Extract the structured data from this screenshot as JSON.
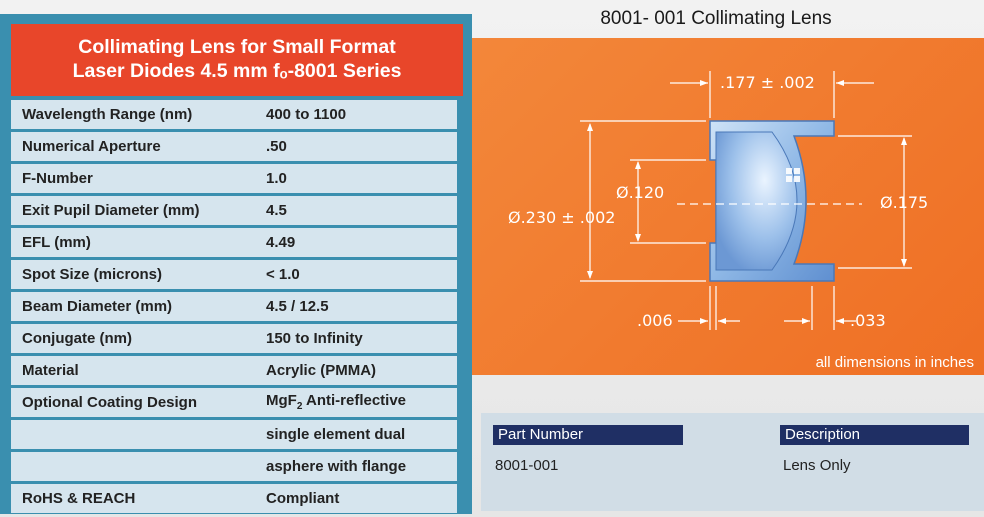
{
  "spec": {
    "title_line1": "Collimating Lens for Small Format",
    "title_line2": "Laser Diodes 4.5 mm fₒ-8001 Series",
    "rows": [
      {
        "label": "Wavelength Range (nm)",
        "value": "400 to 1100"
      },
      {
        "label": "Numerical Aperture",
        "value": ".50"
      },
      {
        "label": "F-Number",
        "value": "1.0"
      },
      {
        "label": "Exit Pupil Diameter (mm)",
        "value": "4.5"
      },
      {
        "label": "EFL (mm)",
        "value": "4.49"
      },
      {
        "label": "Spot Size (microns)",
        "value": "< 1.0"
      },
      {
        "label": "Beam Diameter (mm)",
        "value": "4.5 / 12.5"
      },
      {
        "label": "Conjugate (nm)",
        "value": "150 to Infinity"
      },
      {
        "label": "Material",
        "value": "Acrylic (PMMA)"
      },
      {
        "label": "Optional Coating Design",
        "value_pre": "MgF",
        "value_sub": "2",
        "value_post": " Anti-reflective"
      },
      {
        "label": "",
        "value": "single element dual"
      },
      {
        "label": "",
        "value": "asphere with flange"
      },
      {
        "label": "RoHS & REACH",
        "value": "Compliant"
      }
    ]
  },
  "diagram": {
    "title": "8001- 001 Collimating Lens",
    "dim_width": ".177 ± .002",
    "dim_outer": "Ø.230 ± .002",
    "dim_inner": "Ø.120",
    "dim_right": "Ø.175",
    "dim_flange": ".006",
    "dim_lip": ".033",
    "note": "all dimensions in inches"
  },
  "parts": {
    "header_part": "Part Number",
    "header_desc": "Description",
    "part_number": "8001-001",
    "description": "Lens Only"
  },
  "colors": {
    "panel_blue": "#3a8faf",
    "header_red": "#e8462a",
    "row_bg": "#d6e5ee",
    "diagram_orange": "#f27a2a",
    "table_header_navy": "#1f2f64"
  }
}
